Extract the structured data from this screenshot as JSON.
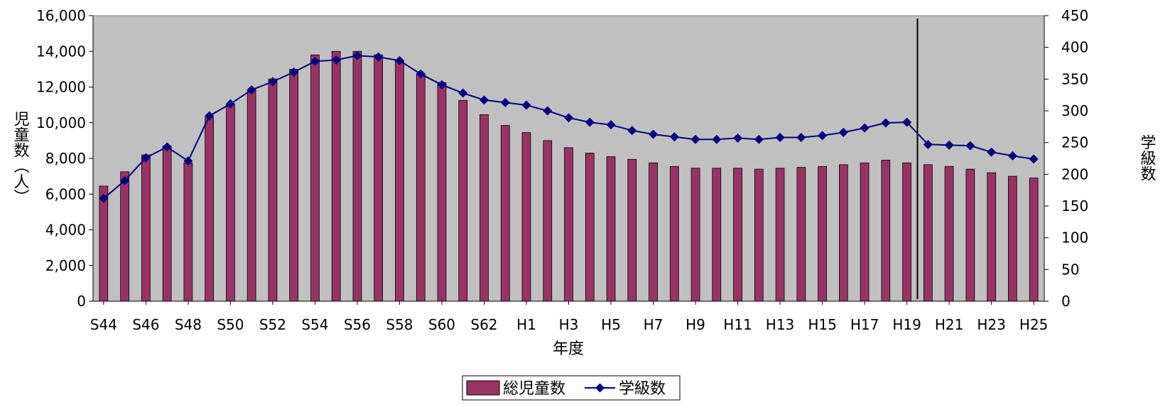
{
  "chart_data": {
    "type": "bar",
    "title": "",
    "xlabel": "年度",
    "ylabel": "児童数（人）",
    "y2label": "学級数",
    "ylim": [
      0,
      16000
    ],
    "y2lim": [
      0,
      450
    ],
    "grid": false,
    "legend_position": "bottom",
    "plot_background": "#C0C0C0",
    "categories": [
      "S44",
      "S45",
      "S46",
      "S47",
      "S48",
      "S49",
      "S50",
      "S51",
      "S52",
      "S53",
      "S54",
      "S55",
      "S56",
      "S57",
      "S58",
      "S59",
      "S60",
      "S61",
      "S62",
      "S63",
      "H1",
      "H2",
      "H3",
      "H4",
      "H5",
      "H6",
      "H7",
      "H8",
      "H9",
      "H10",
      "H11",
      "H12",
      "H13",
      "H14",
      "H15",
      "H16",
      "H17",
      "H18",
      "H19",
      "H20",
      "H21",
      "H22",
      "H23",
      "H24",
      "H25"
    ],
    "x_tick_labels": [
      "S44",
      "S46",
      "S48",
      "S50",
      "S52",
      "S54",
      "S56",
      "S58",
      "S60",
      "S62",
      "H1",
      "H3",
      "H5",
      "H7",
      "H9",
      "H11",
      "H13",
      "H15",
      "H17",
      "H19",
      "H21",
      "H23",
      "H25"
    ],
    "y_tick_labels": [
      "0",
      "2,000",
      "4,000",
      "6,000",
      "8,000",
      "10,000",
      "12,000",
      "14,000",
      "16,000"
    ],
    "y2_tick_labels": [
      "0",
      "50",
      "100",
      "150",
      "200",
      "250",
      "300",
      "350",
      "400",
      "450"
    ],
    "vertical_marker_between": [
      "H19",
      "H20"
    ],
    "series": [
      {
        "name": "総児童数",
        "kind": "bar",
        "axis": "left",
        "color": "#993366",
        "values": [
          6450,
          7250,
          8200,
          8700,
          7750,
          10300,
          11000,
          11850,
          12450,
          13000,
          13800,
          14000,
          14000,
          13800,
          13450,
          12750,
          12250,
          11250,
          10450,
          9850,
          9450,
          9000,
          8600,
          8300,
          8100,
          7950,
          7750,
          7550,
          7450,
          7450,
          7450,
          7400,
          7450,
          7500,
          7550,
          7650,
          7750,
          7900,
          7750,
          7650,
          7550,
          7400,
          7200,
          7000,
          6900
        ]
      },
      {
        "name": "学級数",
        "kind": "line",
        "axis": "right",
        "color": "#000080",
        "values": [
          162,
          190,
          226,
          243,
          221,
          292,
          311,
          333,
          346,
          361,
          378,
          380,
          387,
          385,
          379,
          358,
          341,
          328,
          317,
          313,
          309,
          300,
          289,
          282,
          278,
          269,
          263,
          259,
          255,
          255,
          257,
          255,
          258,
          258,
          261,
          266,
          273,
          281,
          282,
          247,
          246,
          245,
          235,
          229,
          224
        ]
      }
    ]
  }
}
